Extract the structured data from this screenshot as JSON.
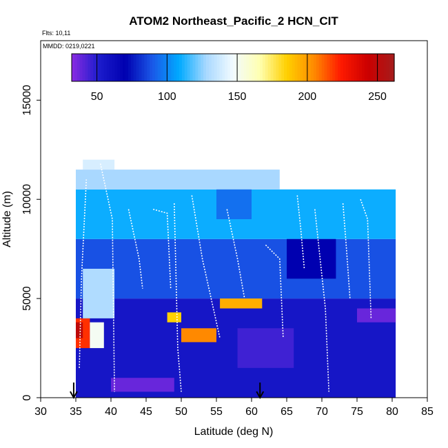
{
  "chart_data": {
    "type": "heatmap",
    "title": "ATOM2 Northeast_Pacific_2 HCN_CIT",
    "flights_label": "Flts: 10,11",
    "date_label": "MMDD: 0219,0221",
    "xlabel": "Latitude (deg N)",
    "ylabel": "Altitude (m)",
    "xlim": [
      30,
      85
    ],
    "ylim": [
      0,
      18000
    ],
    "x_ticks": [
      "30",
      "35",
      "40",
      "45",
      "50",
      "55",
      "60",
      "65",
      "70",
      "75",
      "80",
      "85"
    ],
    "y_ticks": [
      "0",
      "5000",
      "10000",
      "15000"
    ],
    "colorbar": {
      "range": [
        32,
        262
      ],
      "tick_values": [
        50,
        100,
        150,
        200,
        250
      ],
      "tick_labels": [
        "50",
        "100",
        "150",
        "200",
        "250"
      ],
      "colors": [
        "#8a2be2",
        "#1c1ccc",
        "#0000b0",
        "#1a58e8",
        "#00aaff",
        "#a8d8ff",
        "#f2fbff",
        "#ffffb0",
        "#ffd000",
        "#ff8c00",
        "#ff1a00",
        "#cc0000",
        "#a51c1c"
      ]
    },
    "markers": [
      {
        "x": 34.7,
        "label": "arrow"
      },
      {
        "x": 61.2,
        "label": "arrow"
      }
    ],
    "cells": [
      {
        "x0": 35,
        "x1": 80.5,
        "y0": 0,
        "y1": 5000,
        "value": 55
      },
      {
        "x0": 35,
        "x1": 80.5,
        "y0": 5000,
        "y1": 8000,
        "value": 88
      },
      {
        "x0": 35,
        "x1": 80.5,
        "y0": 8000,
        "y1": 10500,
        "value": 110
      },
      {
        "x0": 35,
        "x1": 64,
        "y0": 10500,
        "y1": 11500,
        "value": 128
      },
      {
        "x0": 36,
        "x1": 40.5,
        "y0": 11500,
        "y1": 12000,
        "value": 140
      },
      {
        "x0": 35,
        "x1": 37,
        "y0": 2500,
        "y1": 4000,
        "value": 220
      },
      {
        "x0": 35,
        "x1": 36,
        "y0": 3000,
        "y1": 3800,
        "value": 250
      },
      {
        "x0": 37,
        "x1": 39,
        "y0": 2500,
        "y1": 3800,
        "value": 150
      },
      {
        "x0": 50,
        "x1": 55,
        "y0": 2800,
        "y1": 3500,
        "value": 205
      },
      {
        "x0": 55.5,
        "x1": 61.5,
        "y0": 4500,
        "y1": 5000,
        "value": 195
      },
      {
        "x0": 48,
        "x1": 50,
        "y0": 3800,
        "y1": 4300,
        "value": 185
      },
      {
        "x0": 40,
        "x1": 49,
        "y0": 300,
        "y1": 1000,
        "value": 38
      },
      {
        "x0": 75,
        "x1": 80.5,
        "y0": 3800,
        "y1": 4500,
        "value": 38
      },
      {
        "x0": 36,
        "x1": 40.5,
        "y0": 4000,
        "y1": 6500,
        "value": 130
      },
      {
        "x0": 55,
        "x1": 60,
        "y0": 9000,
        "y1": 10500,
        "value": 95
      },
      {
        "x0": 65,
        "x1": 72,
        "y0": 6000,
        "y1": 8000,
        "value": 70
      },
      {
        "x0": 58,
        "x1": 66,
        "y0": 1500,
        "y1": 3500,
        "value": 45
      }
    ]
  }
}
